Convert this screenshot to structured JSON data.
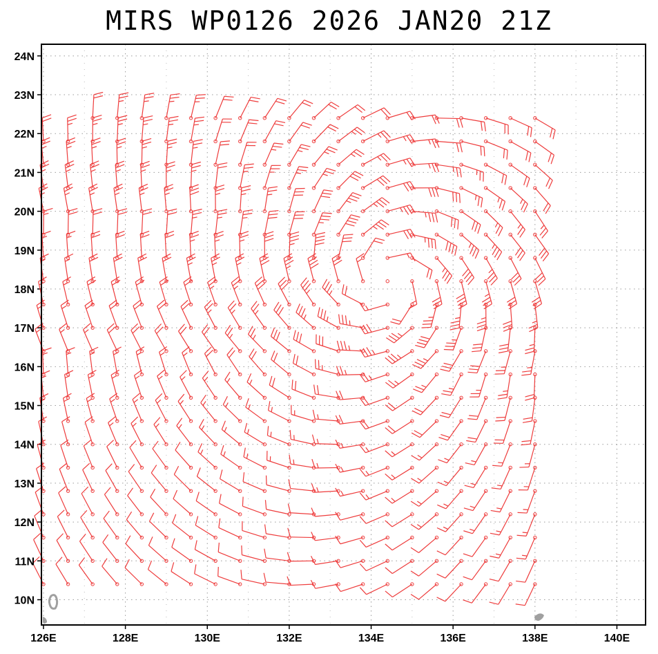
{
  "title": "MIRS WP0126 2026 JAN20 21Z",
  "map": {
    "lat_labels": [
      "10N",
      "11N",
      "12N",
      "13N",
      "14N",
      "15N",
      "16N",
      "17N",
      "18N",
      "19N",
      "20N",
      "21N",
      "22N",
      "23N",
      "24N"
    ],
    "lon_labels": [
      "126E",
      "128E",
      "130E",
      "132E",
      "134E",
      "136E",
      "138E",
      "140E"
    ],
    "lon_range": [
      125.95,
      140.7
    ],
    "lat_range": [
      9.35,
      24.3
    ],
    "grid": "dotted",
    "barb_color": "#ee3b3b",
    "land_color": "#a0a0a0",
    "station_lon_range": [
      126.0,
      138.4
    ],
    "station_lat_range": [
      10.4,
      22.4
    ]
  }
}
